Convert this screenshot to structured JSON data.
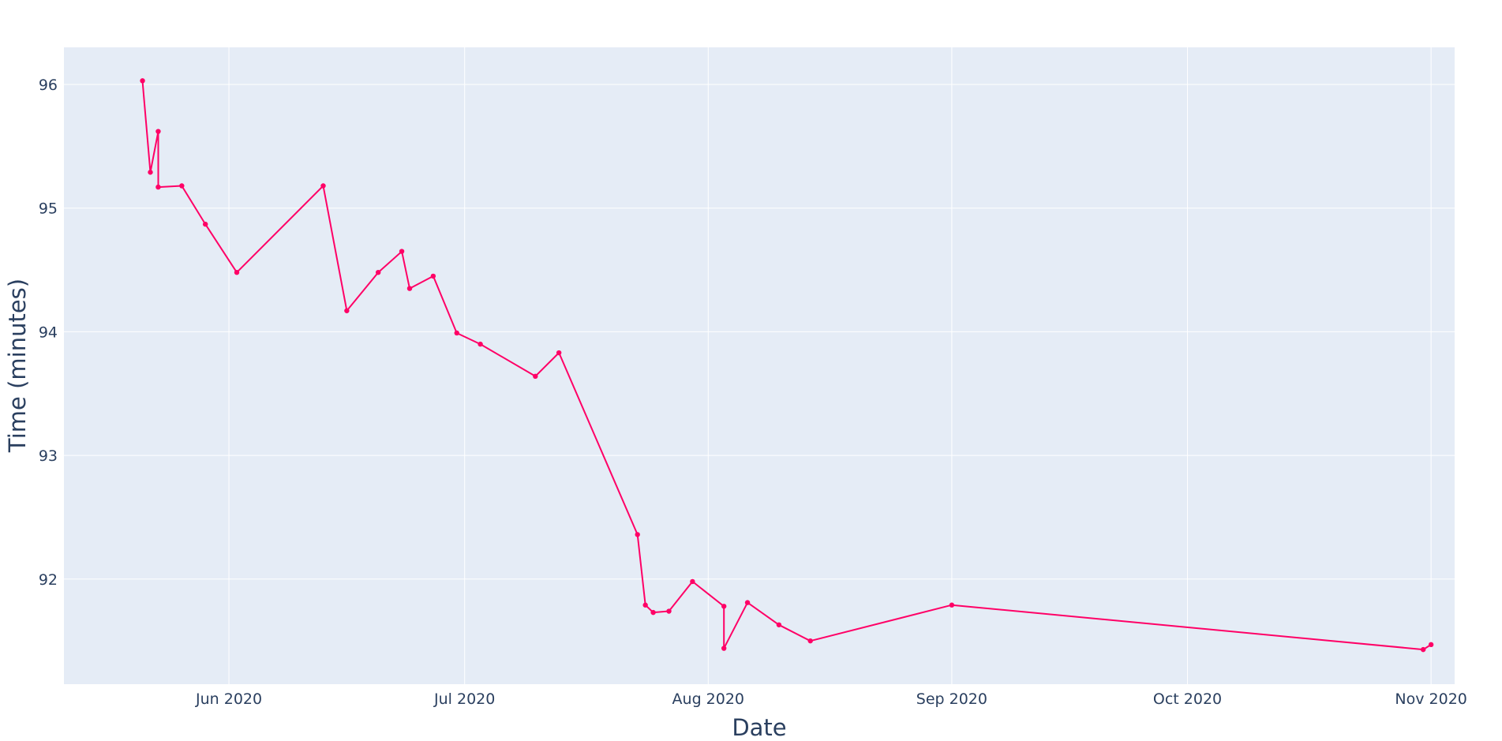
{
  "chart_data": {
    "type": "line",
    "title": "",
    "xlabel": "Date",
    "ylabel": "Time (minutes)",
    "x_axis_type": "date",
    "xlim": [
      "2020-05-11",
      "2020-11-04"
    ],
    "ylim": [
      91.15,
      96.3
    ],
    "x_ticks": [
      {
        "date": "2020-06-01",
        "label": "Jun 2020"
      },
      {
        "date": "2020-07-01",
        "label": "Jul 2020"
      },
      {
        "date": "2020-08-01",
        "label": "Aug 2020"
      },
      {
        "date": "2020-09-01",
        "label": "Sep 2020"
      },
      {
        "date": "2020-10-01",
        "label": "Oct 2020"
      },
      {
        "date": "2020-11-01",
        "label": "Nov 2020"
      }
    ],
    "y_ticks": [
      {
        "value": 92,
        "label": "92"
      },
      {
        "value": 93,
        "label": "93"
      },
      {
        "value": 94,
        "label": "94"
      },
      {
        "value": 95,
        "label": "95"
      },
      {
        "value": 96,
        "label": "96"
      }
    ],
    "grid": true,
    "legend": "none",
    "colors": {
      "plot_bg": "#E5ECF6",
      "grid": "#ffffff",
      "line": "#FF0066",
      "text": "#2a3f5f"
    },
    "series": [
      {
        "x": [
          "2020-05-21",
          "2020-05-22",
          "2020-05-23",
          "2020-05-23",
          "2020-05-26",
          "2020-05-29",
          "2020-06-02",
          "2020-06-13",
          "2020-06-16",
          "2020-06-20",
          "2020-06-23",
          "2020-06-24",
          "2020-06-27",
          "2020-06-30",
          "2020-07-03",
          "2020-07-10",
          "2020-07-13",
          "2020-07-23",
          "2020-07-24",
          "2020-07-25",
          "2020-07-27",
          "2020-07-30",
          "2020-08-03",
          "2020-08-03",
          "2020-08-06",
          "2020-08-10",
          "2020-08-14",
          "2020-09-01",
          "2020-10-31",
          "2020-11-01"
        ],
        "y": [
          96.03,
          95.29,
          95.62,
          95.17,
          95.18,
          94.87,
          94.48,
          95.18,
          94.17,
          94.48,
          94.65,
          94.35,
          94.45,
          93.99,
          93.9,
          93.64,
          93.83,
          92.36,
          91.79,
          91.73,
          91.74,
          91.98,
          91.78,
          91.44,
          91.81,
          91.63,
          91.5,
          91.79,
          91.43,
          91.47
        ]
      }
    ]
  }
}
